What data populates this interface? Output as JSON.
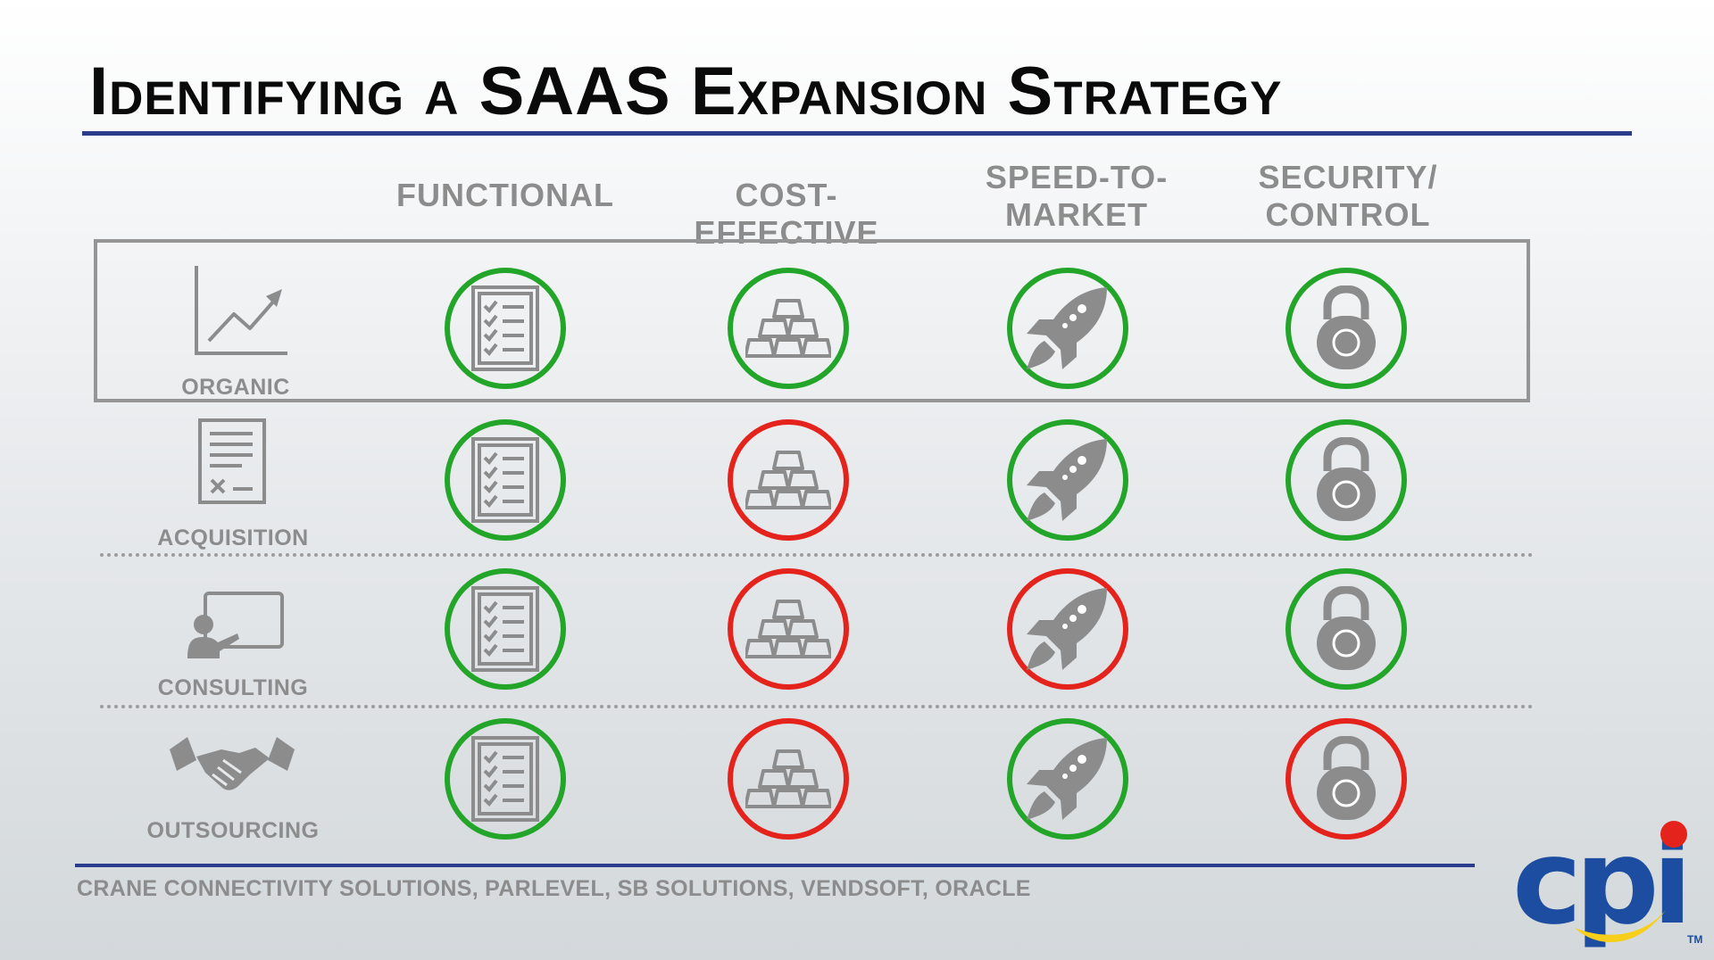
{
  "title": {
    "text": "Identifying a SAAS Expansion Strategy"
  },
  "columns": [
    {
      "id": "functional",
      "lines": [
        "FUNCTIONAL"
      ],
      "icon": "checklist-icon"
    },
    {
      "id": "cost-effective",
      "lines": [
        "COST-EFFECTIVE"
      ],
      "icon": "gold-bars-icon"
    },
    {
      "id": "speed-to-market",
      "lines": [
        "SPEED-TO-",
        "MARKET"
      ],
      "icon": "rocket-icon"
    },
    {
      "id": "security-control",
      "lines": [
        "SECURITY/",
        "CONTROL"
      ],
      "icon": "padlock-icon"
    }
  ],
  "rows": [
    {
      "id": "organic",
      "label": "ORGANIC",
      "icon": "growth-chart-icon",
      "highlighted": true,
      "ratings": [
        "green",
        "green",
        "green",
        "green"
      ]
    },
    {
      "id": "acquisition",
      "label": "ACQUISITION",
      "icon": "contract-icon",
      "highlighted": false,
      "ratings": [
        "green",
        "red",
        "green",
        "green"
      ]
    },
    {
      "id": "consulting",
      "label": "CONSULTING",
      "icon": "presenter-icon",
      "highlighted": false,
      "ratings": [
        "green",
        "red",
        "red",
        "green"
      ]
    },
    {
      "id": "outsourcing",
      "label": "OUTSOURCING",
      "icon": "handshake-icon",
      "highlighted": false,
      "ratings": [
        "green",
        "red",
        "green",
        "red"
      ]
    }
  ],
  "colors": {
    "green": "#22a528",
    "red": "#e4231c",
    "accent": "#2c3c8c",
    "label": "#8c8c8c",
    "icon": "#8c8c8c"
  },
  "footer": {
    "text": "CRANE CONNECTIVITY SOLUTIONS, PARLEVEL, SB SOLUTIONS, VENDSOFT, ORACLE"
  },
  "logo": {
    "text": "cpi",
    "tm": "TM"
  }
}
